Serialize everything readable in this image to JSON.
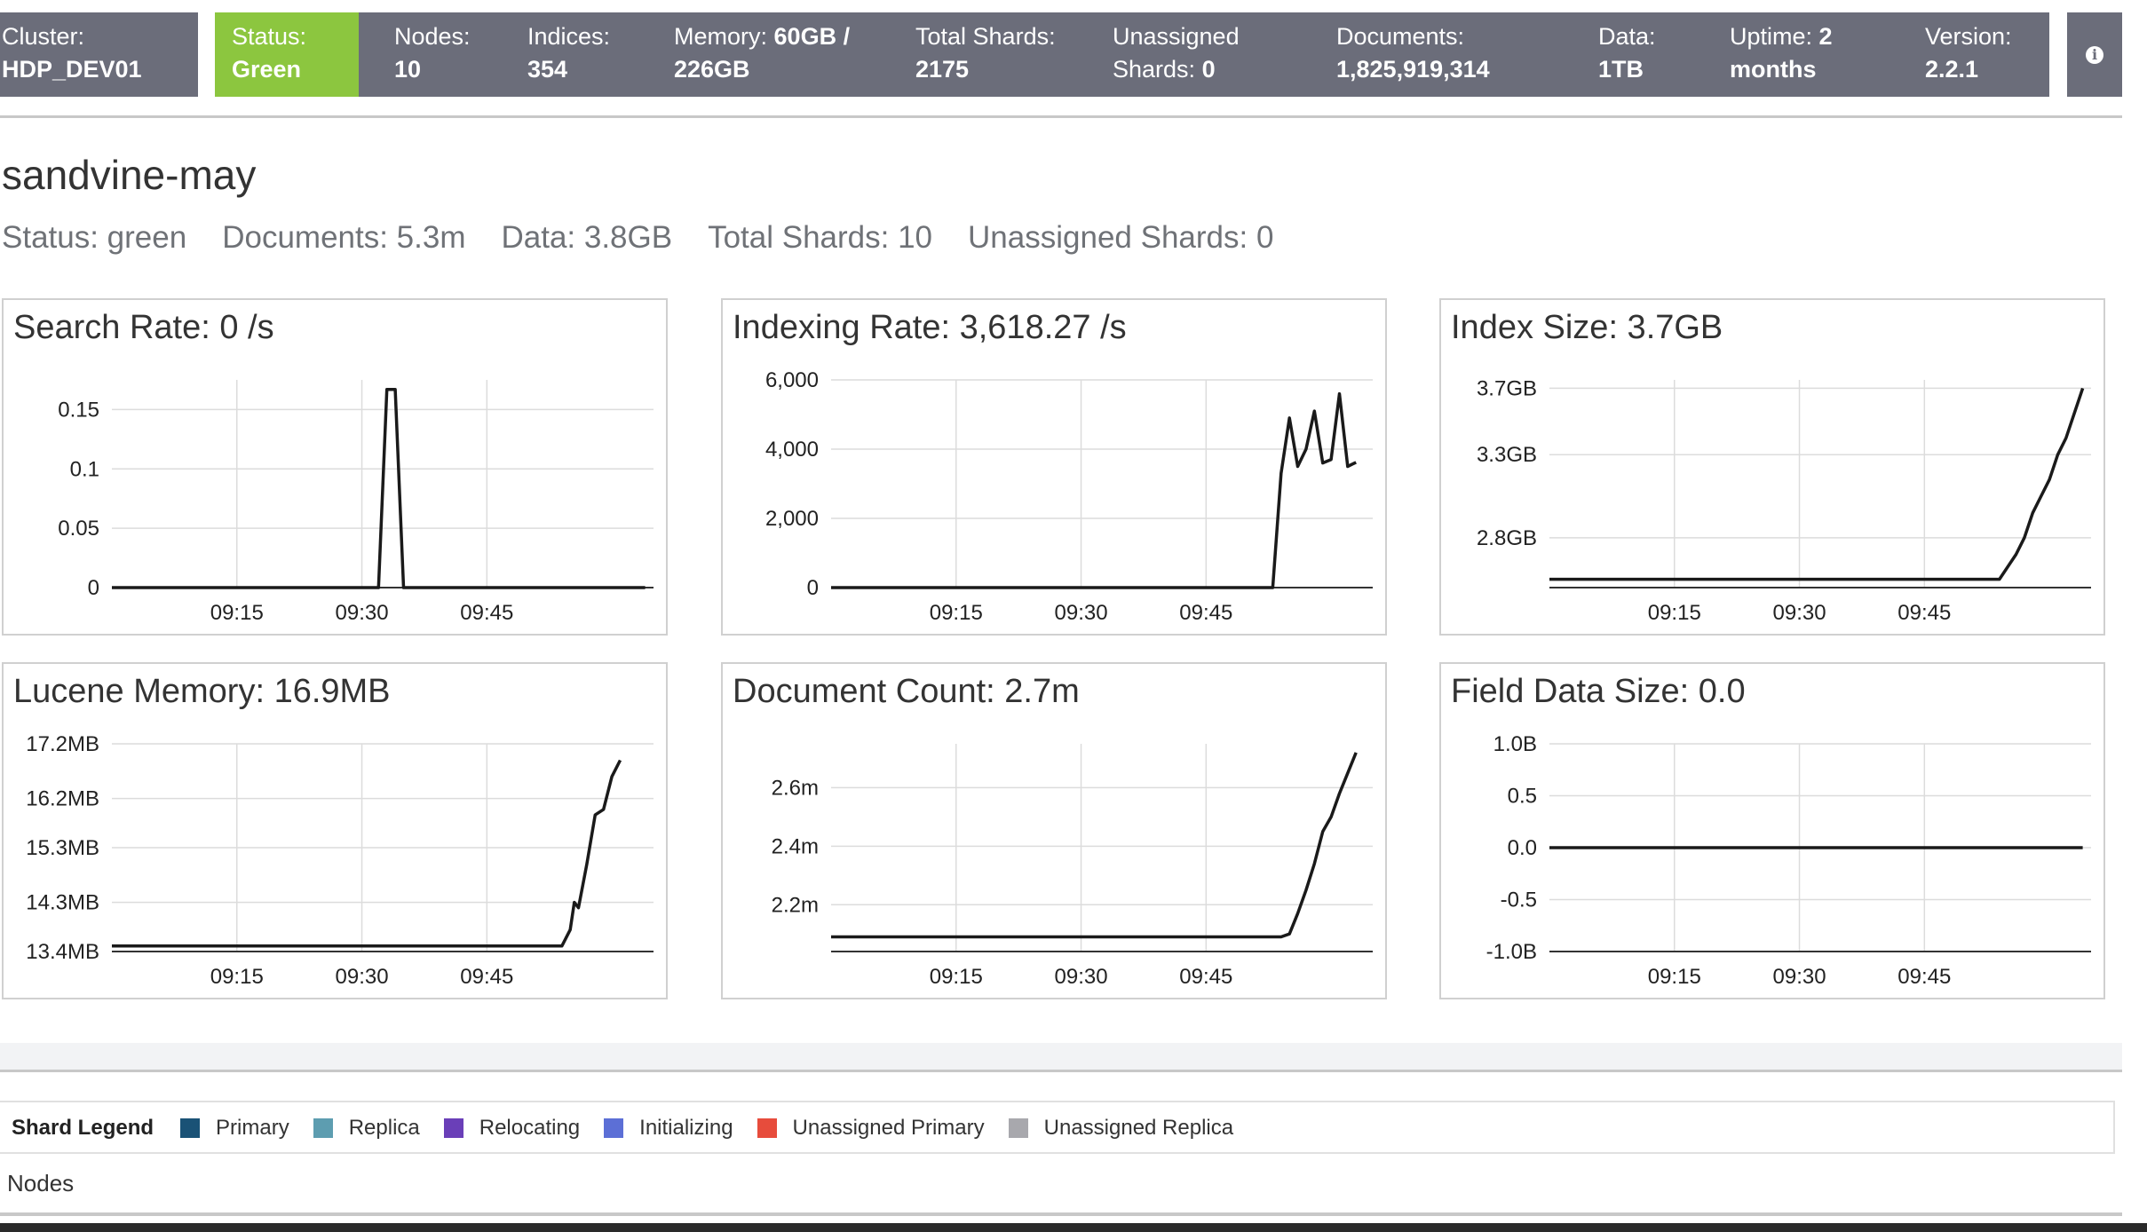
{
  "cluster": {
    "cluster_label": "Cluster:",
    "cluster_value": "HDP_DEV01",
    "status_label": "Status:",
    "status_value": "Green",
    "nodes_label": "Nodes:",
    "nodes_value": "10",
    "indices_label": "Indices:",
    "indices_value": "354",
    "memory_label": "Memory:",
    "memory_value_a": "60GB /",
    "memory_value_b": "226GB",
    "total_shards_label": "Total Shards:",
    "total_shards_value": "2175",
    "unassigned_label_a": "Unassigned",
    "unassigned_label_b": "Shards:",
    "unassigned_value": "0",
    "documents_label": "Documents:",
    "documents_value": "1,825,919,314",
    "data_label": "Data:",
    "data_value": "1TB",
    "uptime_label": "Uptime:",
    "uptime_value_a": "2",
    "uptime_value_b": "months",
    "version_label": "Version:",
    "version_value": "2.2.1",
    "info_icon": "info-circle-icon",
    "colors": {
      "bar": "#6b6d7a",
      "status_green": "#8cc63f"
    }
  },
  "index": {
    "name": "sandvine-may",
    "status": "Status: green",
    "documents": "Documents: 5.3m",
    "data": "Data: 3.8GB",
    "total_shards": "Total Shards: 10",
    "unassigned_shards": "Unassigned Shards: 0"
  },
  "chart_data": [
    {
      "type": "line",
      "title": "Search Rate: 0 /s",
      "x": [
        "09:00",
        "09:05",
        "09:10",
        "09:15",
        "09:20",
        "09:25",
        "09:30",
        "09:32",
        "09:33",
        "09:34",
        "09:35",
        "09:40",
        "09:45",
        "09:50",
        "09:55",
        "10:00",
        "10:04"
      ],
      "y": [
        0,
        0,
        0,
        0,
        0,
        0,
        0,
        0,
        0.167,
        0.167,
        0,
        0,
        0,
        0,
        0,
        0,
        0
      ],
      "xticks": [
        "09:15",
        "09:30",
        "09:45"
      ],
      "yticks": [
        "0",
        "0.05",
        "0.1",
        "0.15"
      ],
      "ytick_values": [
        0,
        0.05,
        0.1,
        0.15
      ],
      "ylim": [
        0,
        0.175
      ],
      "grid": true
    },
    {
      "type": "line",
      "title": "Indexing Rate: 3,618.27 /s",
      "x": [
        "09:00",
        "09:30",
        "09:50",
        "09:53",
        "09:54",
        "09:55",
        "09:56",
        "09:57",
        "09:58",
        "09:59",
        "10:00",
        "10:01",
        "10:02",
        "10:03"
      ],
      "y": [
        0,
        0,
        0,
        0,
        3300,
        4900,
        3500,
        4000,
        5100,
        3600,
        3700,
        5600,
        3500,
        3618
      ],
      "xticks": [
        "09:15",
        "09:30",
        "09:45"
      ],
      "yticks": [
        "0",
        "2,000",
        "4,000",
        "6,000"
      ],
      "ytick_values": [
        0,
        2000,
        4000,
        6000
      ],
      "ylim": [
        0,
        6000
      ],
      "grid": true
    },
    {
      "type": "line",
      "title": "Index Size: 3.7GB",
      "x": [
        "09:00",
        "09:30",
        "09:50",
        "09:54",
        "09:56",
        "09:57",
        "09:58",
        "09:59",
        "10:00",
        "10:01",
        "10:02",
        "10:03",
        "10:04"
      ],
      "y": [
        2.55,
        2.55,
        2.55,
        2.55,
        2.7,
        2.8,
        2.95,
        3.05,
        3.15,
        3.3,
        3.4,
        3.55,
        3.7
      ],
      "xticks": [
        "09:15",
        "09:30",
        "09:45"
      ],
      "yticks": [
        "2.8GB",
        "3.3GB",
        "3.7GB"
      ],
      "ytick_values": [
        2.8,
        3.3,
        3.7
      ],
      "ylim": [
        2.5,
        3.75
      ],
      "grid": true
    },
    {
      "type": "line",
      "title": "Lucene Memory: 16.9MB",
      "x": [
        "09:00",
        "09:30",
        "09:53",
        "09:54",
        "09:55",
        "09:55.5",
        "09:56",
        "09:57",
        "09:58",
        "09:59",
        "10:00",
        "10:01"
      ],
      "y": [
        13.5,
        13.5,
        13.5,
        13.5,
        13.8,
        14.3,
        14.2,
        15.0,
        15.9,
        16.0,
        16.6,
        16.9
      ],
      "xticks": [
        "09:15",
        "09:30",
        "09:45"
      ],
      "yticks": [
        "13.4MB",
        "14.3MB",
        "15.3MB",
        "16.2MB",
        "17.2MB"
      ],
      "ytick_values": [
        13.4,
        14.3,
        15.3,
        16.2,
        17.2
      ],
      "ylim": [
        13.4,
        17.2
      ],
      "grid": true
    },
    {
      "type": "line",
      "title": "Document Count: 2.7m",
      "x": [
        "09:00",
        "09:30",
        "09:53",
        "09:54",
        "09:55",
        "09:56",
        "09:57",
        "09:58",
        "09:59",
        "10:00",
        "10:01",
        "10:03"
      ],
      "y": [
        2.09,
        2.09,
        2.09,
        2.09,
        2.1,
        2.17,
        2.25,
        2.34,
        2.45,
        2.5,
        2.58,
        2.72
      ],
      "xticks": [
        "09:15",
        "09:30",
        "09:45"
      ],
      "yticks": [
        "2.2m",
        "2.4m",
        "2.6m"
      ],
      "ytick_values": [
        2.2,
        2.4,
        2.6
      ],
      "ylim": [
        2.04,
        2.75
      ],
      "grid": true
    },
    {
      "type": "line",
      "title": "Field Data Size: 0.0",
      "x": [
        "09:00",
        "10:04"
      ],
      "y": [
        0,
        0
      ],
      "xticks": [
        "09:15",
        "09:30",
        "09:45"
      ],
      "yticks": [
        "-1.0B",
        "-0.5",
        "0.0",
        "0.5",
        "1.0B"
      ],
      "ytick_values": [
        -1,
        -0.5,
        0,
        0.5,
        1
      ],
      "ylim": [
        -1,
        1
      ],
      "grid": true
    }
  ],
  "legend": {
    "title": "Shard Legend",
    "items": [
      {
        "label": "Primary",
        "color": "#1a5276"
      },
      {
        "label": "Replica",
        "color": "#5d9db0"
      },
      {
        "label": "Relocating",
        "color": "#6a3fb8"
      },
      {
        "label": "Initializing",
        "color": "#5c6fd6"
      },
      {
        "label": "Unassigned Primary",
        "color": "#e74c3c"
      },
      {
        "label": "Unassigned Replica",
        "color": "#a8a8ad"
      }
    ]
  },
  "nodes_section": {
    "label": "Nodes"
  }
}
